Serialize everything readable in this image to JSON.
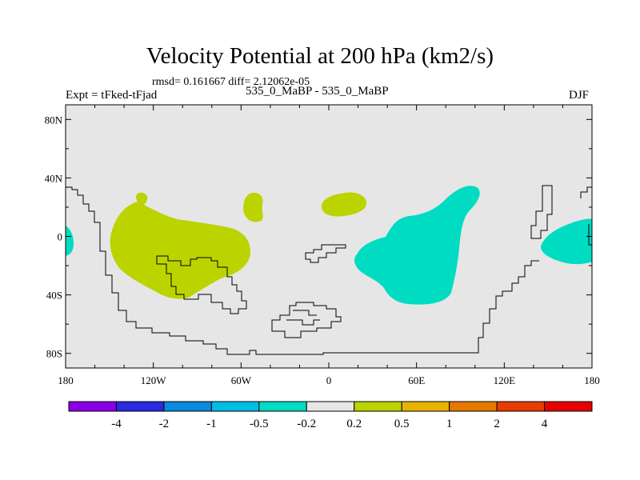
{
  "title": "Velocity Potential at 200 hPa (km2/s)",
  "stats_text": "rmsd= 0.161667 diff= 2.12062e-05",
  "experiment": "Expt = tFked-tFjad",
  "case_name": "535_0_MaBP - 535_0_MaBP",
  "season": "DJF",
  "map": {
    "lon_range": [
      -180,
      180
    ],
    "lat_range": [
      -90,
      90
    ],
    "background_color": "#e6e6e6",
    "positive_color": "#bbd400",
    "negative_color": "#00dcc2",
    "coastline_color": "#000000",
    "x_ticks": [
      {
        "value": -180,
        "label": "180"
      },
      {
        "value": -120,
        "label": "120W"
      },
      {
        "value": -60,
        "label": "60W"
      },
      {
        "value": 0,
        "label": "0"
      },
      {
        "value": 60,
        "label": "60E"
      },
      {
        "value": 120,
        "label": "120E"
      },
      {
        "value": 180,
        "label": "180"
      }
    ],
    "y_ticks": [
      {
        "value": 80,
        "label": "80N"
      },
      {
        "value": 40,
        "label": "40N"
      },
      {
        "value": 0,
        "label": "0"
      },
      {
        "value": -40,
        "label": "40S"
      },
      {
        "value": -80,
        "label": "80S"
      }
    ]
  },
  "colorbar": {
    "colors": [
      "#8a00e6",
      "#2a2ae0",
      "#0a8ae0",
      "#00bde6",
      "#00dcc2",
      "#e6e6e6",
      "#bbd400",
      "#e6b400",
      "#e67800",
      "#e63c00",
      "#e60000"
    ],
    "labels": [
      "-4",
      "-2",
      "-1",
      "-0.5",
      "-0.2",
      "0.2",
      "0.5",
      "1",
      "2",
      "4"
    ]
  }
}
